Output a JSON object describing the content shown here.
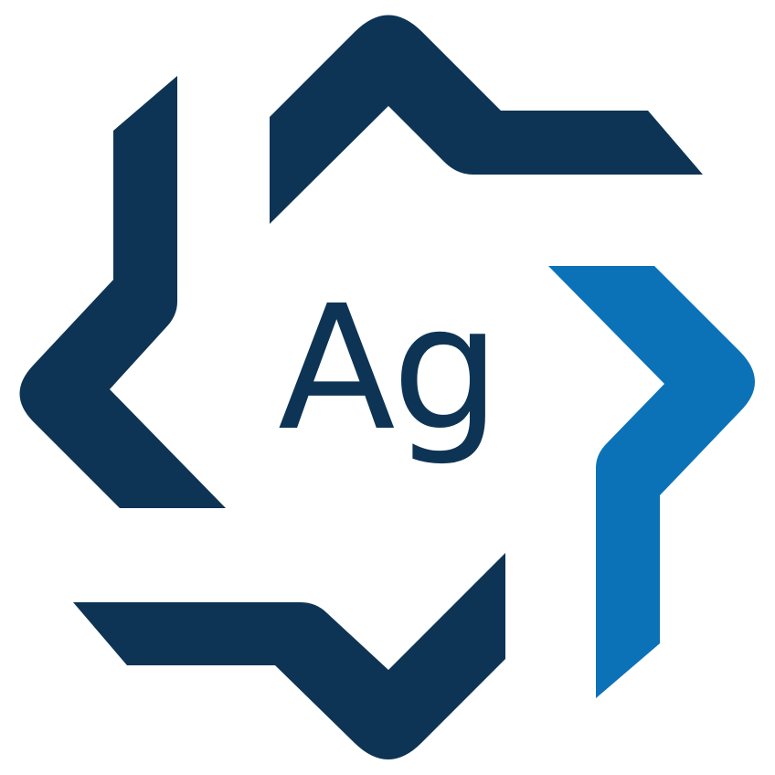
{
  "logo": {
    "monogram": "Ag",
    "colors": {
      "navy": "#0E3455",
      "blue": "#0B72B8",
      "background": "#FFFFFF"
    },
    "icon": "ag-star-logo-icon"
  }
}
